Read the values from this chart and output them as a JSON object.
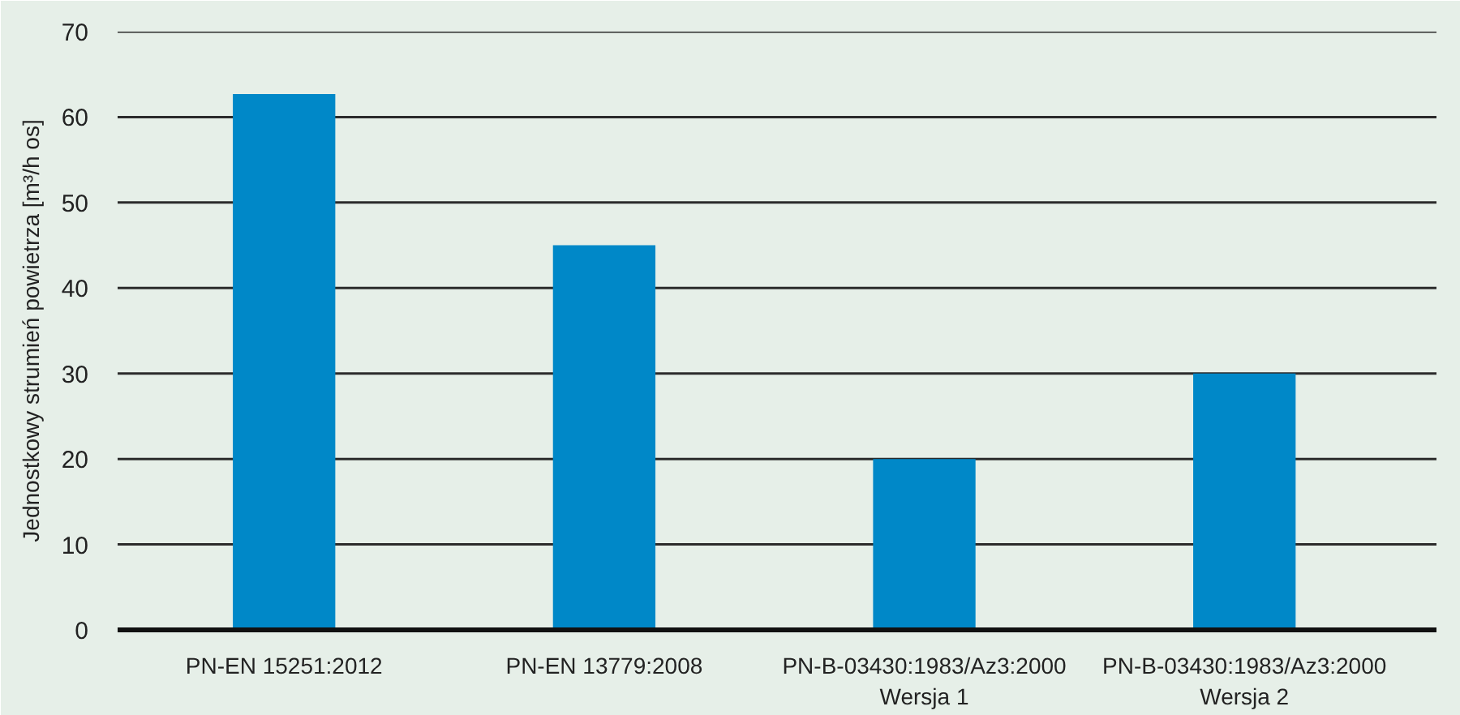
{
  "chart_data": {
    "type": "bar",
    "ylabel": "Jednostkowy strumień powietrza [m³/h os]",
    "categories": [
      "PN-EN 15251:2012",
      "PN-EN 13779:2008",
      "PN-B-03430:1983/Az3:2000\nWersja 1",
      "PN-B-03430:1983/Az3:2000\nWersja 2"
    ],
    "values": [
      62.7,
      45,
      20,
      30
    ],
    "color": "#0088c8",
    "ylim": [
      0,
      70
    ],
    "yticks": [
      0,
      10,
      20,
      30,
      40,
      50,
      60,
      70
    ],
    "grid": "y"
  }
}
